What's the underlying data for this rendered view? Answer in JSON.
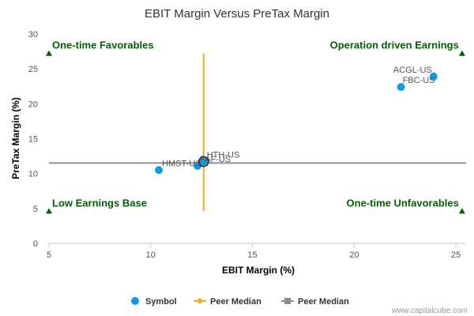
{
  "chart_data": {
    "type": "scatter",
    "title": "EBIT Margin Versus PreTax Margin",
    "xlabel": "EBIT Margin (%)",
    "ylabel": "PreTax Margin (%)",
    "xlim": [
      5,
      25.5
    ],
    "ylim": [
      0,
      30
    ],
    "xticks": [
      5,
      10,
      15,
      20,
      25
    ],
    "yticks": [
      0,
      5,
      10,
      15,
      20,
      25,
      30
    ],
    "grid": false,
    "legend_position": "bottom",
    "series": [
      {
        "name": "Symbol",
        "color": "#0d9be4",
        "points": [
          {
            "label": "ACGL-US",
            "x": 23.9,
            "y": 23.9
          },
          {
            "label": "FBC-US",
            "x": 22.3,
            "y": 22.4
          },
          {
            "label": "HMST-US",
            "x": 10.4,
            "y": 10.5
          },
          {
            "label": "FAF-US",
            "x": 12.3,
            "y": 11.1
          },
          {
            "label": "HTH-US",
            "x": 12.6,
            "y": 11.7
          }
        ]
      },
      {
        "name": "Peer Median",
        "color": "#f5a623",
        "orientation": "vertical",
        "x": 12.6,
        "y_range": [
          4.6,
          27.2
        ]
      },
      {
        "name": "Peer Median",
        "color": "#8a8f9c",
        "orientation": "horizontal",
        "y": 11.5,
        "x_range": [
          5,
          25.5
        ]
      }
    ],
    "highlight": {
      "label": "HTH-US",
      "x": 12.6,
      "y": 11.7
    },
    "quadrants": [
      {
        "text": "One-time Favorables",
        "x": 5,
        "y": 27.2,
        "anchor": "start"
      },
      {
        "text": "Operation driven Earnings",
        "x": 25.3,
        "y": 27.2,
        "anchor": "end"
      },
      {
        "text": "Low Earnings Base",
        "x": 5,
        "y": 4.6,
        "anchor": "start"
      },
      {
        "text": "One-time Unfavorables",
        "x": 25.3,
        "y": 4.6,
        "anchor": "end"
      }
    ],
    "quadrant_color": "#006100",
    "credit": "www.capitalcube.com"
  }
}
